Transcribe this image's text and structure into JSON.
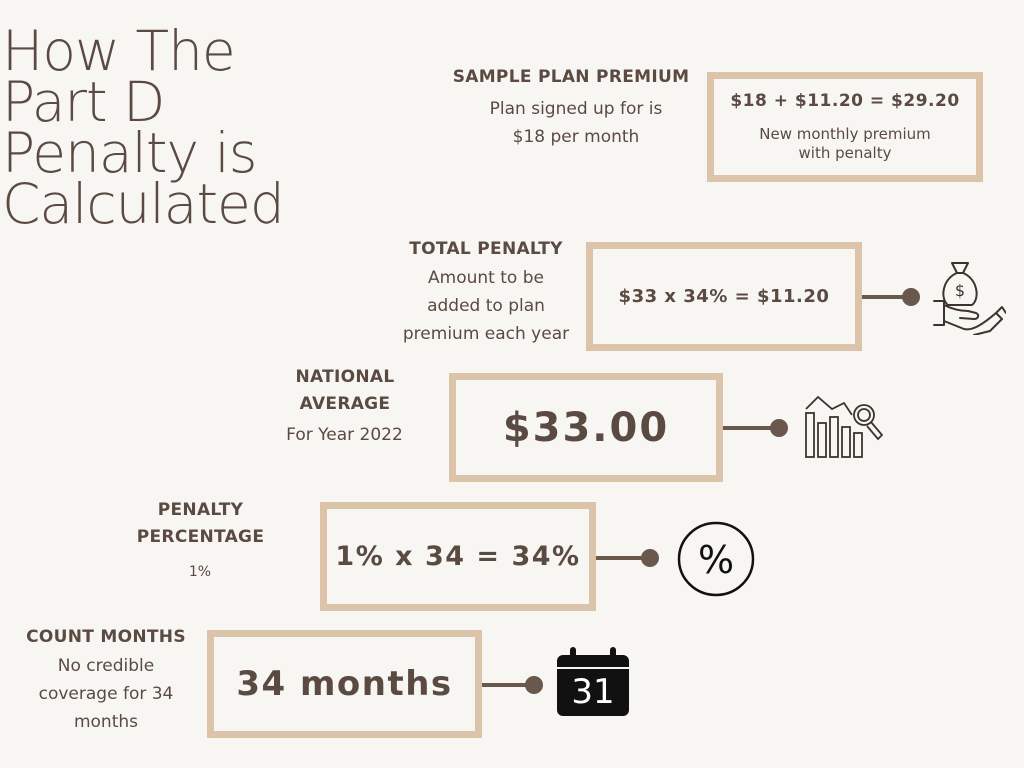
{
  "title": {
    "lines": [
      "How The",
      "Part D",
      "Penalty is",
      "Calculated"
    ]
  },
  "sample_plan": {
    "heading": "SAMPLE PLAN PREMIUM",
    "desc_lines": [
      "Plan signed up for is",
      "$18 per month"
    ],
    "formula": "$18 + $11.20 = $29.20",
    "note_lines": [
      "New monthly premium",
      "with penalty"
    ]
  },
  "total_penalty": {
    "heading": "TOTAL PENALTY",
    "desc_lines": [
      "Amount to be",
      "added to plan",
      "premium each year"
    ],
    "formula": "$33 x 34% = $11.20",
    "icon": "money-bag-hand-icon"
  },
  "national_average": {
    "heading_lines": [
      "NATIONAL",
      "AVERAGE"
    ],
    "desc": "For Year 2022",
    "value": "$33.00",
    "icon": "bar-chart-magnifier-icon"
  },
  "penalty_percentage": {
    "heading_lines": [
      "PENALTY",
      "PERCENTAGE"
    ],
    "desc": "1%",
    "formula": "1% x 34 = 34%",
    "icon": "percent-circle-icon"
  },
  "count_months": {
    "heading": "COUNT MONTHS",
    "desc_lines": [
      "No credible",
      "coverage for 34",
      "months"
    ],
    "value": "34 months",
    "icon": "calendar-icon",
    "calendar_day": "31"
  },
  "colors": {
    "background": "#f8f6f3",
    "box_border": "#dbc4a9",
    "text": "#5a4a42",
    "connector": "#6b584d"
  }
}
